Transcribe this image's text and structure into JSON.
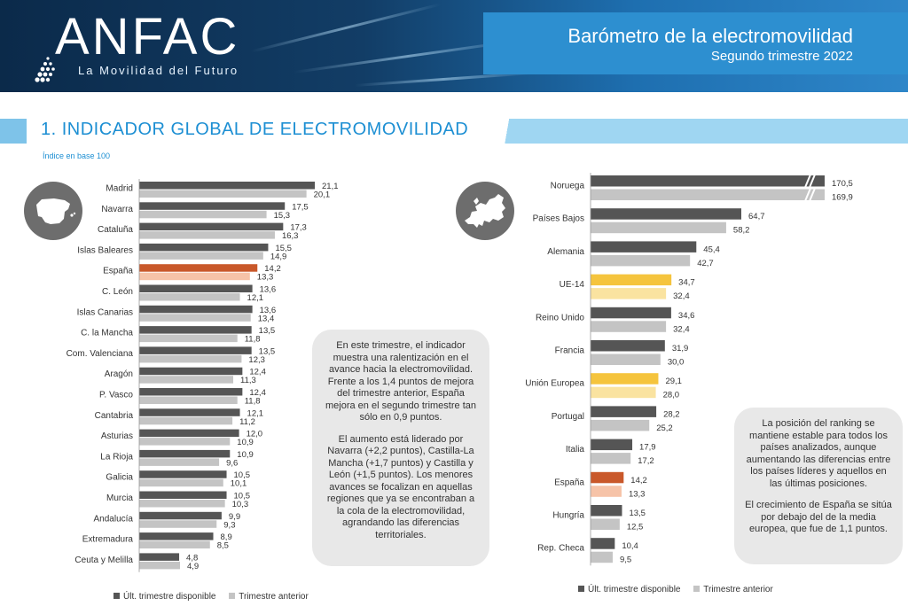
{
  "header": {
    "logo": "ANFAC",
    "tagline": "La Movilidad del Futuro",
    "title": "Barómetro de la electromovilidad",
    "subtitle": "Segundo trimestre 2022"
  },
  "section": {
    "title": "1. INDICADOR GLOBAL DE ELECTROMOVILIDAD",
    "index_note": "Índice en base 100"
  },
  "colors": {
    "current": "#555555",
    "previous": "#c4c4c4",
    "spain_current": "#c9582a",
    "spain_previous": "#f6c3a8",
    "eu_current": "#f5c43d",
    "eu_previous": "#fae3a0"
  },
  "chart_data": [
    {
      "type": "bar",
      "orientation": "horizontal",
      "title": "Regiones de España",
      "categories": [
        "Madrid",
        "Navarra",
        "Cataluña",
        "Islas Baleares",
        "España",
        "C. León",
        "Islas Canarias",
        "C. la Mancha",
        "Com. Valenciana",
        "Aragón",
        "P. Vasco",
        "Cantabria",
        "Asturias",
        "La Rioja",
        "Galicia",
        "Murcia",
        "Andalucía",
        "Extremadura",
        "Ceuta y Melilla"
      ],
      "highlight": {
        "España": "spain"
      },
      "series": [
        {
          "name": "Últ. trimestre disponible",
          "values": [
            21.1,
            17.5,
            17.3,
            15.5,
            14.2,
            13.6,
            13.6,
            13.5,
            13.5,
            12.4,
            12.4,
            12.1,
            12.0,
            10.9,
            10.5,
            10.5,
            9.9,
            8.9,
            4.8
          ]
        },
        {
          "name": "Trimestre anterior",
          "values": [
            20.1,
            15.3,
            16.3,
            14.9,
            13.3,
            12.1,
            13.4,
            11.8,
            12.3,
            11.3,
            11.8,
            11.2,
            10.9,
            9.6,
            10.1,
            10.3,
            9.3,
            8.5,
            4.9
          ]
        }
      ],
      "labels_current": [
        "21,1",
        "17,5",
        "17,3",
        "15,5",
        "14,2",
        "13,6",
        "13,6",
        "13,5",
        "13,5",
        "12,4",
        "12,4",
        "12,1",
        "12,0",
        "10,9",
        "10,5",
        "10,5",
        "9,9",
        "8,9",
        "4,8"
      ],
      "labels_previous": [
        "20,1",
        "15,3",
        "16,3",
        "14,9",
        "13,3",
        "12,1",
        "13,4",
        "11,8",
        "12,3",
        "11,3",
        "11,8",
        "11,2",
        "10,9",
        "9,6",
        "10,1",
        "10,3",
        "9,3",
        "8,5",
        "4,9"
      ],
      "xlim": [
        0,
        22
      ]
    },
    {
      "type": "bar",
      "orientation": "horizontal",
      "title": "Países europeos",
      "categories": [
        "Noruega",
        "Países Bajos",
        "Alemania",
        "UE-14",
        "Reino Unido",
        "Francia",
        "Unión Europea",
        "Portugal",
        "Italia",
        "España",
        "Hungría",
        "Rep. Checa"
      ],
      "highlight": {
        "España": "spain",
        "UE-14": "eu",
        "Unión Europea": "eu"
      },
      "axis_break": [
        "Noruega"
      ],
      "series": [
        {
          "name": "Últ. trimestre disponible",
          "values": [
            170.5,
            64.7,
            45.4,
            34.7,
            34.6,
            31.9,
            29.1,
            28.2,
            17.9,
            14.2,
            13.5,
            10.4
          ]
        },
        {
          "name": "Trimestre anterior",
          "values": [
            169.9,
            58.2,
            42.7,
            32.4,
            32.4,
            30.0,
            28.0,
            25.2,
            17.2,
            13.3,
            12.5,
            9.5
          ]
        }
      ],
      "labels_current": [
        "170,5",
        "64,7",
        "45,4",
        "34,7",
        "34,6",
        "31,9",
        "29,1",
        "28,2",
        "17,9",
        "14,2",
        "13,5",
        "10,4"
      ],
      "labels_previous": [
        "169,9",
        "58,2",
        "42,7",
        "32,4",
        "32,4",
        "30,0",
        "28,0",
        "25,2",
        "17,2",
        "13,3",
        "12,5",
        "9,5"
      ],
      "xlim": [
        0,
        70
      ]
    }
  ],
  "notes": {
    "left": [
      "En este trimestre, el indicador muestra una ralentización en el avance hacia la electromovilidad. Frente a los 1,4 puntos de mejora del trimestre anterior, España mejora en el segundo trimestre tan sólo en 0,9 puntos.",
      "El aumento está liderado por Navarra (+2,2 puntos), Castilla-La Mancha (+1,7 puntos) y Castilla y León (+1,5 puntos). Los menores avances se focalizan en aquellas regiones que ya se encontraban a la cola de la electromovilidad, agrandando las diferencias territoriales."
    ],
    "right": [
      "La posición del ranking se mantiene estable para todos los países analizados, aunque aumentando las diferencias entre los países líderes y aquellos en las últimas posiciones.",
      "El crecimiento de España se sitúa por debajo del de la media europea, que fue de 1,1 puntos."
    ]
  },
  "legend": {
    "current": "Últ. trimestre disponible",
    "previous": "Trimestre anterior"
  },
  "icons": {
    "spain_map": "spain-map-icon",
    "europe_map": "europe-map-icon"
  }
}
